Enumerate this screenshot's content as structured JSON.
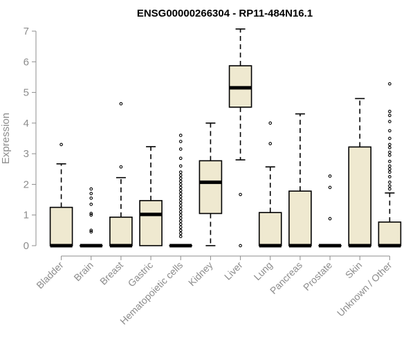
{
  "chart_data": {
    "type": "boxplot",
    "title": "ENSG00000266304 - RP11-484N16.1",
    "ylabel": "Expression",
    "ylim": [
      0,
      7
    ],
    "yticks": [
      0,
      1,
      2,
      3,
      4,
      5,
      6,
      7
    ],
    "box_fill": "#efe9d0",
    "categories": [
      "Bladder",
      "Brain",
      "Breast",
      "Gastric",
      "Hematopoietic cells",
      "Kidney",
      "Liver",
      "Lung",
      "Pancreas",
      "Prostate",
      "Skin",
      "Unknown / Other"
    ],
    "boxes": [
      {
        "q1": 0,
        "median": 0,
        "q3": 1.25,
        "whisker_low": 0,
        "whisker_high": 2.67,
        "outliers": [
          3.3
        ]
      },
      {
        "q1": 0,
        "median": 0,
        "q3": 0,
        "whisker_low": 0,
        "whisker_high": 0,
        "outliers": [
          0.5,
          0.45,
          1.0,
          1.05,
          1.35,
          1.55,
          1.7,
          1.85
        ]
      },
      {
        "q1": 0,
        "median": 0,
        "q3": 0.93,
        "whisker_low": 0,
        "whisker_high": 2.22,
        "outliers": [
          2.57,
          4.63
        ]
      },
      {
        "q1": 0,
        "median": 1.02,
        "q3": 1.47,
        "whisker_low": 0,
        "whisker_high": 3.23,
        "outliers": []
      },
      {
        "q1": 0,
        "median": 0,
        "q3": 0,
        "whisker_low": 0,
        "whisker_high": 0,
        "outliers": [
          0.3,
          0.4,
          0.5,
          0.6,
          0.7,
          0.8,
          0.9,
          1.0,
          1.1,
          1.2,
          1.3,
          1.4,
          1.5,
          1.6,
          1.7,
          1.8,
          1.9,
          2.0,
          2.1,
          2.2,
          2.3,
          2.4,
          2.6,
          2.85,
          3.15,
          3.4,
          3.6
        ]
      },
      {
        "q1": 1.05,
        "median": 2.07,
        "q3": 2.77,
        "whisker_low": 0,
        "whisker_high": 4.0,
        "outliers": []
      },
      {
        "q1": 4.52,
        "median": 5.15,
        "q3": 5.87,
        "whisker_low": 2.8,
        "whisker_high": 7.07,
        "outliers": [
          1.67,
          0
        ]
      },
      {
        "q1": 0,
        "median": 0,
        "q3": 1.08,
        "whisker_low": 0,
        "whisker_high": 2.57,
        "outliers": [
          3.33,
          4.0
        ]
      },
      {
        "q1": 0,
        "median": 0,
        "q3": 1.78,
        "whisker_low": 0,
        "whisker_high": 4.3,
        "outliers": []
      },
      {
        "q1": 0,
        "median": 0,
        "q3": 0,
        "whisker_low": 0,
        "whisker_high": 0,
        "outliers": [
          0.88,
          1.9,
          2.27
        ]
      },
      {
        "q1": 0,
        "median": 0,
        "q3": 3.22,
        "whisker_low": 0,
        "whisker_high": 4.8,
        "outliers": []
      },
      {
        "q1": 0,
        "median": 0,
        "q3": 0.77,
        "whisker_low": 0,
        "whisker_high": 1.72,
        "outliers": [
          1.85,
          1.95,
          2.07,
          2.25,
          2.4,
          2.5,
          2.6,
          2.75,
          2.95,
          3.05,
          3.2,
          3.3,
          3.5,
          3.75,
          4.05,
          4.25,
          4.38,
          5.28
        ]
      }
    ]
  }
}
